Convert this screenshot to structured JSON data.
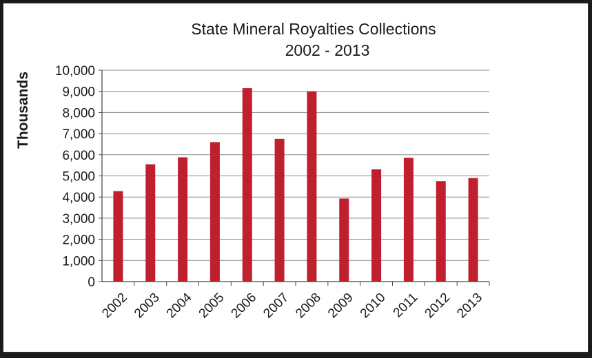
{
  "chart_data": {
    "type": "bar",
    "title": "State Mineral Royalties Collections",
    "subtitle": "2002 - 2013",
    "xlabel": "",
    "ylabel": "Thousands",
    "categories": [
      "2002",
      "2003",
      "2004",
      "2005",
      "2006",
      "2007",
      "2008",
      "2009",
      "2010",
      "2011",
      "2012",
      "2013"
    ],
    "values": [
      4280,
      5550,
      5880,
      6600,
      9150,
      6750,
      8990,
      3930,
      5310,
      5860,
      4750,
      4900
    ],
    "ylim": [
      0,
      10000
    ],
    "yticks": [
      0,
      1000,
      2000,
      3000,
      4000,
      5000,
      6000,
      7000,
      8000,
      9000,
      10000
    ],
    "ytick_labels": [
      "0",
      "1,000",
      "2,000",
      "3,000",
      "4,000",
      "5,000",
      "6,000",
      "7,000",
      "8,000",
      "9,000",
      "10,000"
    ],
    "grid": true,
    "legend": "none",
    "bar_color": "#c0202e"
  }
}
